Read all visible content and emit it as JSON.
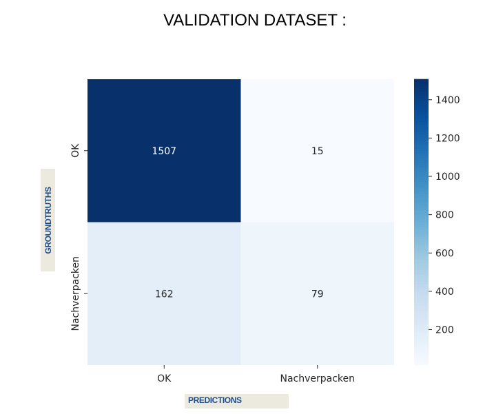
{
  "chart_data": {
    "type": "heatmap",
    "title": "VALIDATION DATASET :",
    "xlabel": "PREDICTIONS",
    "ylabel": "GROUNDTRUTHS",
    "x_categories": [
      "OK",
      "Nachverpacken"
    ],
    "y_categories": [
      "OK",
      "Nachverpacken"
    ],
    "values": [
      [
        1507,
        15
      ],
      [
        162,
        79
      ]
    ],
    "colormap": "Blues",
    "colorbar": {
      "min": 15,
      "max": 1507,
      "ticks": [
        200,
        400,
        600,
        800,
        1000,
        1200,
        1400
      ]
    },
    "colors": {
      "low": "#f7fbff",
      "high": "#08306b",
      "text_dark": "#262626",
      "text_light": "#ffffff",
      "label_box": "#ece9df",
      "label_text": "#1f4d8c"
    }
  }
}
